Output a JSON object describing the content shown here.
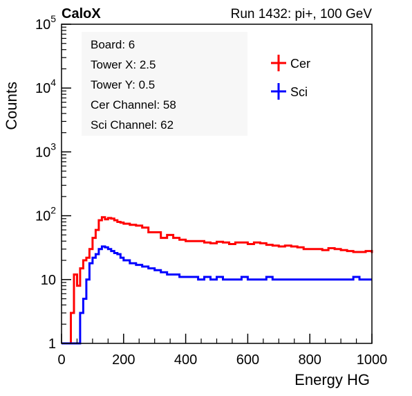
{
  "header": {
    "left_label": "CaloX",
    "right_label": "Run 1432: pi+, 100 GeV"
  },
  "info_box": {
    "lines": [
      "Board: 6",
      "Tower X: 2.5",
      "Tower Y: 0.5",
      "Cer Channel: 58",
      "Sci Channel: 62"
    ]
  },
  "colors": {
    "cer": "#ff0000",
    "sci": "#0000ff",
    "axis": "#000000"
  },
  "chart_data": {
    "type": "line",
    "xlabel": "Energy HG",
    "ylabel": "Counts",
    "xlim": [
      0,
      1000
    ],
    "ylim": [
      1,
      100000
    ],
    "yscale": "log",
    "x_ticks": [
      0,
      200,
      400,
      600,
      800,
      1000
    ],
    "x_tick_labels": [
      "0",
      "200",
      "400",
      "600",
      "800",
      "1000"
    ],
    "y_ticks": [
      1,
      10,
      100,
      1000,
      10000,
      100000
    ],
    "y_tick_labels": [
      {
        "base": "1",
        "exp": ""
      },
      {
        "base": "10",
        "exp": ""
      },
      {
        "base": "10",
        "exp": "2"
      },
      {
        "base": "10",
        "exp": "3"
      },
      {
        "base": "10",
        "exp": "4"
      },
      {
        "base": "10",
        "exp": "5"
      }
    ],
    "legend": {
      "position": "top-right",
      "entries": [
        "Cer",
        "Sci"
      ]
    },
    "grid": false,
    "series": [
      {
        "name": "Cer",
        "x": [
          0,
          10,
          20,
          30,
          40,
          50,
          60,
          70,
          80,
          90,
          100,
          110,
          120,
          130,
          140,
          150,
          160,
          170,
          180,
          190,
          200,
          220,
          240,
          260,
          280,
          300,
          320,
          340,
          360,
          380,
          400,
          420,
          440,
          460,
          480,
          500,
          520,
          540,
          560,
          580,
          600,
          620,
          640,
          660,
          680,
          700,
          720,
          740,
          760,
          780,
          800,
          820,
          840,
          860,
          880,
          900,
          920,
          940,
          960,
          980,
          1000
        ],
        "y": [
          1,
          1,
          1,
          3,
          12,
          8,
          15,
          20,
          22,
          30,
          45,
          60,
          85,
          95,
          88,
          92,
          90,
          85,
          80,
          78,
          75,
          72,
          70,
          65,
          55,
          55,
          45,
          50,
          45,
          42,
          40,
          40,
          40,
          38,
          37,
          39,
          38,
          36,
          38,
          38,
          36,
          38,
          37,
          35,
          34,
          33,
          34,
          33,
          32,
          30,
          30,
          30,
          29,
          31,
          30,
          29,
          28,
          27,
          27,
          28,
          26
        ]
      },
      {
        "name": "Sci",
        "x": [
          0,
          10,
          20,
          30,
          40,
          50,
          60,
          70,
          80,
          90,
          100,
          110,
          120,
          130,
          140,
          150,
          160,
          170,
          180,
          190,
          200,
          220,
          240,
          260,
          280,
          300,
          320,
          340,
          360,
          380,
          400,
          420,
          440,
          460,
          480,
          500,
          520,
          540,
          560,
          580,
          600,
          620,
          640,
          660,
          680,
          700,
          720,
          740,
          760,
          780,
          800,
          820,
          840,
          860,
          880,
          900,
          920,
          940,
          960,
          980,
          1000
        ],
        "y": [
          1,
          1,
          1,
          1,
          1,
          1,
          3,
          5,
          10,
          18,
          22,
          25,
          30,
          33,
          32,
          30,
          28,
          26,
          25,
          22,
          20,
          18,
          17,
          16,
          15,
          14,
          13,
          12,
          12,
          11,
          11,
          11,
          10,
          11,
          10,
          11,
          10,
          10,
          10,
          11,
          10,
          10,
          10,
          11,
          10,
          10,
          10,
          10,
          10,
          10,
          10,
          10,
          10,
          10,
          10,
          10,
          10,
          11,
          10,
          10,
          10
        ]
      }
    ]
  }
}
